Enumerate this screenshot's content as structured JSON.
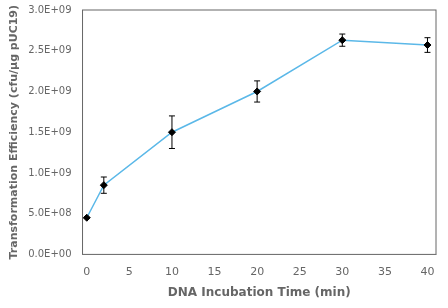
{
  "chart_data": {
    "type": "line",
    "xlabel": "DNA Incubation Time (min)",
    "ylabel": "Transformation Efficiency (cfu/µg pUC19)",
    "x": [
      0,
      2,
      10,
      20,
      30,
      40
    ],
    "series": [
      {
        "type": "line",
        "color": "#5BB8E8",
        "marker": "none",
        "line_style": "solid",
        "values": [
          450000000,
          850000000,
          1500000000,
          2000000000,
          2630000000,
          2570000000
        ]
      },
      {
        "type": "scatter",
        "color": "black",
        "marker": "diamond",
        "values": [
          450000000,
          850000000,
          1500000000,
          2000000000,
          2630000000,
          2570000000
        ],
        "yerr": [
          4000000,
          100000000,
          200000000,
          130000000,
          75000000,
          90000000
        ]
      }
    ],
    "xlim": [
      -0.5,
      41
    ],
    "ylim": [
      0,
      3000000000
    ],
    "xticks": [
      0,
      5,
      10,
      15,
      20,
      25,
      30,
      35,
      40
    ],
    "yticks": [
      {
        "value": 0,
        "label": "0.0E+00"
      },
      {
        "value": 500000000,
        "label": "5.0E+08"
      },
      {
        "value": 1000000000,
        "label": "1.0E+09"
      },
      {
        "value": 1500000000,
        "label": "1.5E+09"
      },
      {
        "value": 2000000000,
        "label": "2.0E+09"
      },
      {
        "value": 2500000000,
        "label": "2.5E+09"
      },
      {
        "value": 3000000000,
        "label": "3.0E+09"
      }
    ],
    "grid": false
  }
}
